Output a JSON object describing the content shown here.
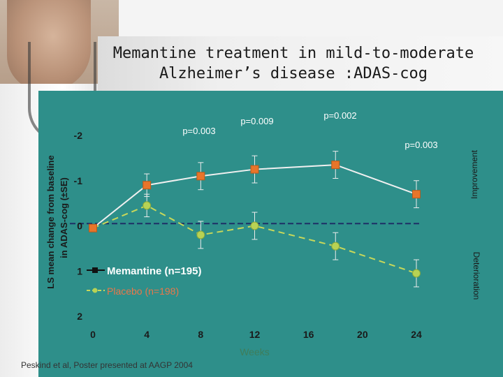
{
  "title_line1": "Memantine treatment in mild-to-moderate",
  "title_line2": "Alzheimer’s disease :ADAS-cog",
  "citation": "Peskind et al, Poster presented at AAGP 2004",
  "colors": {
    "panel_bg": "#2e8f8a",
    "memantine": "#f0f0f0",
    "memantine_marker": "#e8752a",
    "placebo": "#c8d85a",
    "placebo_marker": "#b8d254",
    "baseline": "#1f2f66",
    "axis_text": "#1a1a1a",
    "pvalue_text": "#ffffff",
    "legend_text": "#ffffff",
    "placebo_legend_text": "#e9774a"
  },
  "chart_data": {
    "type": "line",
    "title": "Memantine treatment in mild-to-moderate Alzheimer’s disease :ADAS-cog",
    "xlabel": "Weeks",
    "ylabel_line1": "LS mean change from baseline",
    "ylabel_line2": "in ADAS-cog (±SE)",
    "x_ticks": [
      "0",
      "4",
      "8",
      "12",
      "16",
      "20",
      "24"
    ],
    "y_ticks": [
      {
        "value": -2,
        "label": "-2"
      },
      {
        "value": -1,
        "label": "-1"
      },
      {
        "value": 0,
        "label": "0"
      },
      {
        "value": 1,
        "label": "1"
      },
      {
        "value": 2,
        "label": "2"
      }
    ],
    "xlim": [
      0,
      24
    ],
    "ylim": [
      -2,
      2
    ],
    "y_inverted": true,
    "right_label_top": "Improvement",
    "right_label_bottom": "Deterioration",
    "grid": false,
    "legend": "bottom-left inside",
    "series": [
      {
        "name": "Memantine (n=195)",
        "x": [
          0,
          4,
          8,
          12,
          18,
          24
        ],
        "y": [
          0.05,
          -0.9,
          -1.1,
          -1.25,
          -1.35,
          -0.7
        ],
        "err": [
          0,
          0.25,
          0.3,
          0.3,
          0.3,
          0.3
        ]
      },
      {
        "name": "Placebo (n=198)",
        "x": [
          0,
          4,
          8,
          12,
          18,
          24
        ],
        "y": [
          0.05,
          -0.45,
          0.2,
          0.0,
          0.45,
          1.05
        ],
        "err": [
          0,
          0.25,
          0.3,
          0.3,
          0.3,
          0.3
        ]
      }
    ],
    "baseline_y": -0.05,
    "annotations": [
      {
        "text": "p=0.003",
        "x": 8
      },
      {
        "text": "p=0.009",
        "x": 12
      },
      {
        "text": "p=0.002",
        "x": 18
      },
      {
        "text": "p=0.003",
        "x": 24
      }
    ]
  }
}
